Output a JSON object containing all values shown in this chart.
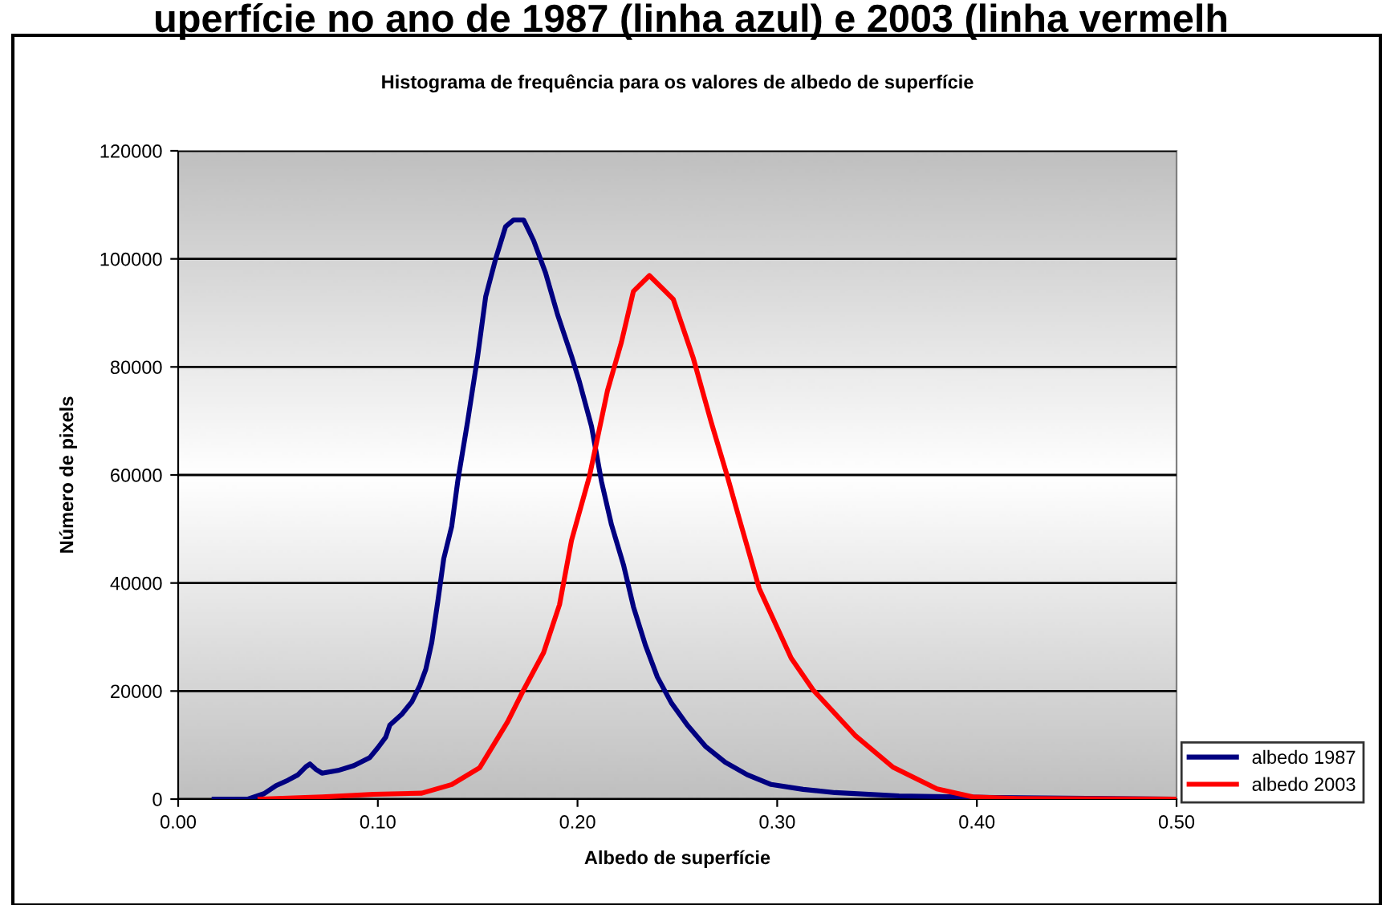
{
  "chart_data": {
    "type": "line",
    "title": "Histograma de frequência para os valores de albedo de superfície",
    "xlabel": "Albedo de superfície",
    "ylabel": "Número de pixels",
    "annotations": [
      "uperfície no ano de 1987 (linha azul) e 2003 (linha vermelh"
    ],
    "xlim": [
      0,
      0.5
    ],
    "xticks": [
      {
        "value": 0,
        "label": "0.00"
      },
      {
        "value": 0.1,
        "label": "0.10"
      },
      {
        "value": 0.2,
        "label": "0.20"
      },
      {
        "value": 0.3,
        "label": "0.30"
      },
      {
        "value": 0.4,
        "label": "0.40"
      },
      {
        "value": 0.5,
        "label": "0.50"
      }
    ],
    "ylim": [
      0,
      120000
    ],
    "yticks": [
      0,
      20000,
      40000,
      60000,
      80000,
      100000,
      120000
    ],
    "grid": "y",
    "legend": "bottom right",
    "marker": "none",
    "line_style": "solid",
    "series": [
      {
        "name": "albedo 1987",
        "color": "#000080",
        "x": [
          0.018,
          0.035,
          0.043,
          0.049,
          0.055,
          0.06,
          0.064,
          0.066,
          0.069,
          0.072,
          0.08,
          0.088,
          0.096,
          0.1,
          0.104,
          0.106,
          0.112,
          0.117,
          0.121,
          0.124,
          0.127,
          0.13,
          0.133,
          0.137,
          0.14,
          0.145,
          0.15,
          0.154,
          0.159,
          0.164,
          0.168,
          0.173,
          0.178,
          0.184,
          0.19,
          0.197,
          0.201,
          0.207,
          0.212,
          0.217,
          0.223,
          0.228,
          0.234,
          0.24,
          0.247,
          0.255,
          0.264,
          0.274,
          0.285,
          0.297,
          0.313,
          0.329,
          0.361,
          0.409,
          0.5
        ],
        "values": [
          0,
          0,
          1000,
          2500,
          3500,
          4500,
          6000,
          6500,
          5500,
          4800,
          5300,
          6200,
          7700,
          9500,
          11500,
          13700,
          15700,
          18000,
          21000,
          24000,
          29000,
          36500,
          44500,
          50500,
          58800,
          70000,
          82000,
          93000,
          100000,
          106000,
          107200,
          107200,
          103400,
          97400,
          89700,
          82000,
          77200,
          69000,
          58800,
          50800,
          43400,
          35600,
          28500,
          22600,
          17800,
          13700,
          9800,
          6800,
          4500,
          2700,
          1800,
          1200,
          600,
          300,
          0
        ]
      },
      {
        "name": "albedo 2003",
        "color": "#ff0000",
        "x": [
          0.041,
          0.072,
          0.098,
          0.122,
          0.137,
          0.151,
          0.165,
          0.173,
          0.183,
          0.191,
          0.197,
          0.206,
          0.215,
          0.222,
          0.228,
          0.236,
          0.244,
          0.248,
          0.258,
          0.267,
          0.275,
          0.281,
          0.291,
          0.307,
          0.318,
          0.339,
          0.358,
          0.38,
          0.398,
          0.42,
          0.5
        ],
        "values": [
          0,
          400,
          900,
          1100,
          2700,
          5800,
          14300,
          20200,
          27100,
          36000,
          47900,
          59800,
          75600,
          84600,
          94000,
          96900,
          94000,
          92500,
          81600,
          69700,
          59800,
          51900,
          39000,
          26100,
          20200,
          11800,
          5900,
          1900,
          400,
          100,
          0
        ]
      }
    ]
  }
}
